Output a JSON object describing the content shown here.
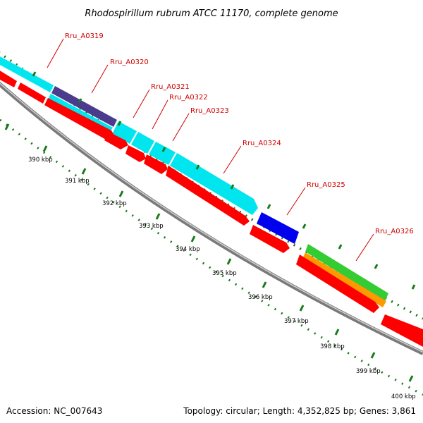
{
  "title": "Rhodospirillum rubrum ATCC 11170, complete genome",
  "footer": {
    "accession_label": "Accession:",
    "accession": "NC_007643",
    "topology_label": "Topology:",
    "topology": "circular",
    "length_label": "Length:",
    "length": "4,352,825 bp",
    "genes_label": "Genes:",
    "genes": "3,861"
  },
  "colors": {
    "gene_label": "#d00000",
    "tick": "#1a7a1a",
    "backbone": "#888888",
    "cds": "#ff0000",
    "cyan": "#00e5ee",
    "dark_blue": "#4a3b8c",
    "blue": "#0000ee",
    "green": "#33cc33",
    "orange": "#ff9900"
  },
  "ticks": [
    {
      "label": "390 kbp"
    },
    {
      "label": "391 kbp"
    },
    {
      "label": "392 kbp"
    },
    {
      "label": "393 kbp"
    },
    {
      "label": "394 kbp"
    },
    {
      "label": "395 kbp"
    },
    {
      "label": "396 kbp"
    },
    {
      "label": "397 kbp"
    },
    {
      "label": "398 kbp"
    },
    {
      "label": "399 kbp"
    },
    {
      "label": "400 kbp"
    }
  ],
  "gene_labels": [
    {
      "label": "Rru_A0319"
    },
    {
      "label": "Rru_A0320"
    },
    {
      "label": "Rru_A0321"
    },
    {
      "label": "Rru_A0322"
    },
    {
      "label": "Rru_A0323"
    },
    {
      "label": "Rru_A0324"
    },
    {
      "label": "Rru_A0325"
    },
    {
      "label": "Rru_A0326"
    }
  ]
}
